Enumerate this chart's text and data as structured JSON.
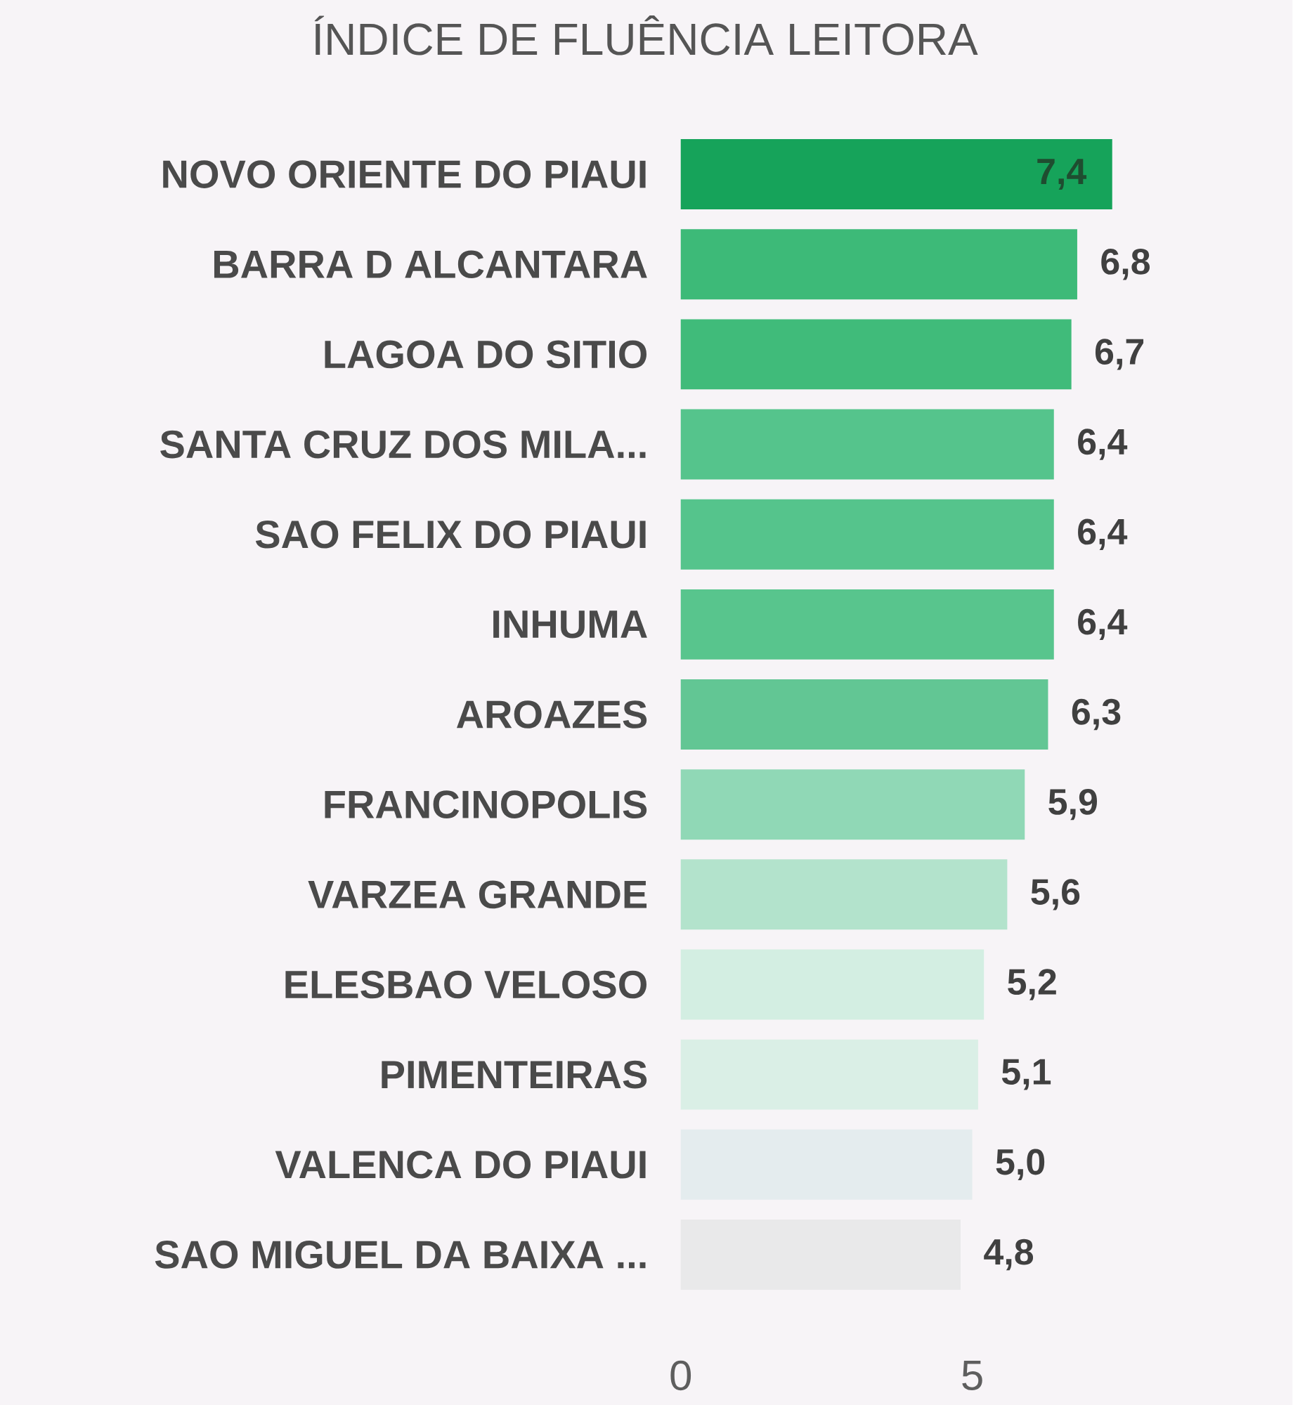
{
  "chart_data": {
    "type": "bar",
    "orientation": "horizontal",
    "title": "ÍNDICE DE FLUÊNCIA LEITORA",
    "categories": [
      "NOVO ORIENTE DO PIAUI",
      "BARRA D ALCANTARA",
      "LAGOA DO SITIO",
      "SANTA CRUZ DOS MILA...",
      "SAO FELIX DO PIAUI",
      "INHUMA",
      "AROAZES",
      "FRANCINOPOLIS",
      "VARZEA GRANDE",
      "ELESBAO VELOSO",
      "PIMENTEIRAS",
      "VALENCA DO PIAUI",
      "SAO MIGUEL DA BAIXA ..."
    ],
    "values": [
      7.4,
      6.8,
      6.7,
      6.4,
      6.4,
      6.4,
      6.3,
      5.9,
      5.6,
      5.2,
      5.1,
      5.0,
      4.8
    ],
    "colors": [
      "#16a35a",
      "#3dba78",
      "#40bb7a",
      "#55c48c",
      "#55c48c",
      "#58c58d",
      "#62c694",
      "#90d8b6",
      "#b3e3cc",
      "#d3eee2",
      "#daefe6",
      "#e4ecee",
      "#e9e9ea"
    ],
    "value_labels": [
      "7,4",
      "6,8",
      "6,7",
      "6,4",
      "6,4",
      "6,4",
      "6,3",
      "5,9",
      "5,6",
      "5,2",
      "5,1",
      "5,0",
      "4,8"
    ],
    "xlim": [
      0,
      7.4
    ],
    "xticks": [
      0,
      5
    ]
  }
}
